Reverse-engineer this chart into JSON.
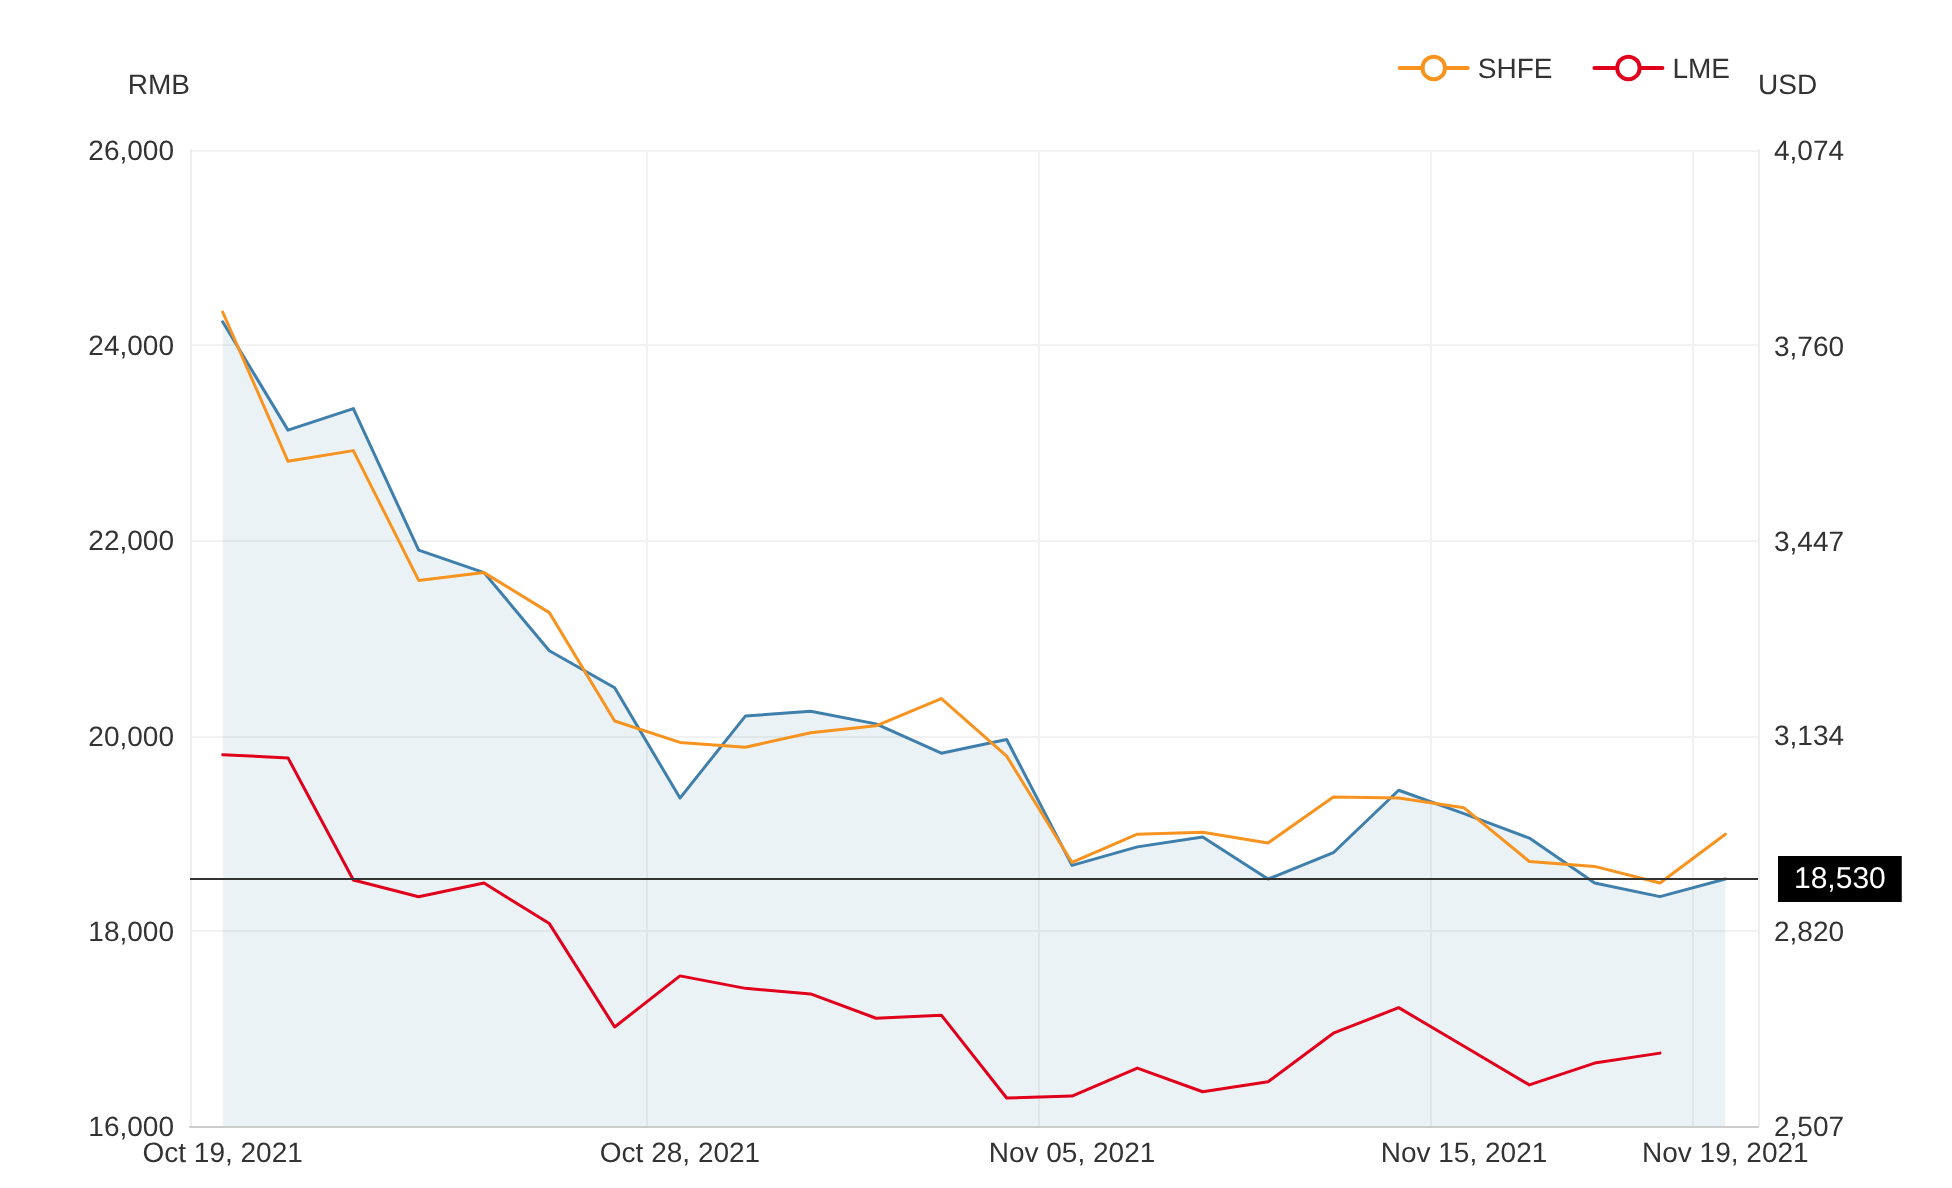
{
  "chart_data": {
    "type": "line",
    "ylabel": "RMB",
    "y2label": "USD",
    "categories": [
      "Oct 19, 2021",
      null,
      null,
      null,
      null,
      null,
      null,
      "Oct 28, 2021",
      null,
      null,
      null,
      null,
      null,
      "Nov 05, 2021",
      null,
      null,
      null,
      null,
      null,
      "Nov 15, 2021",
      null,
      null,
      null,
      "Nov 19, 2021"
    ],
    "series": [
      {
        "type": "area",
        "color": "#3e7fab",
        "values": [
          24240,
          23130,
          23350,
          21900,
          21670,
          20870,
          20490,
          19360,
          20200,
          20250,
          20120,
          19820,
          19960,
          18670,
          18860,
          18960,
          18530,
          18800,
          19440,
          19200,
          18950,
          18490,
          18350,
          18530
        ]
      },
      {
        "name": "SHFE",
        "color": "#f7931e",
        "values": [
          24340,
          22810,
          22920,
          21590,
          21670,
          21260,
          20150,
          19930,
          19880,
          20030,
          20100,
          20380,
          19790,
          18700,
          18990,
          19010,
          18900,
          19370,
          19360,
          19260,
          18710,
          18660,
          18490,
          18990
        ]
      },
      {
        "name": "LME",
        "color": "#e0001b",
        "axis": "y2",
        "values": [
          3103,
          3098,
          2902,
          2875,
          2897,
          2832,
          2666,
          2748,
          2728,
          2719,
          2680,
          2685,
          2552,
          2555,
          2600,
          2562,
          2578,
          2656,
          2697,
          2635,
          2573,
          2608,
          2624,
          null
        ]
      }
    ],
    "ylim": [
      16000,
      26000
    ],
    "yticks": [
      {
        "value": 16000,
        "label": "16,000"
      },
      {
        "value": 18000,
        "label": "18,000"
      },
      {
        "value": 20000,
        "label": "20,000"
      },
      {
        "value": 22000,
        "label": "22,000"
      },
      {
        "value": 24000,
        "label": "24,000"
      },
      {
        "value": 26000,
        "label": "26,000"
      }
    ],
    "y2lim": [
      2507,
      4074
    ],
    "y2ticks": [
      {
        "value": 2507,
        "label": "2,507"
      },
      {
        "value": 2820,
        "label": "2,820"
      },
      {
        "value": 3134,
        "label": "3,134"
      },
      {
        "value": 3447,
        "label": "3,447"
      },
      {
        "value": 3760,
        "label": "3,760"
      },
      {
        "value": 4074,
        "label": "4,074"
      }
    ],
    "ref_lines": [
      {
        "axis": "y",
        "value": 18530,
        "label": "18,530",
        "color": "#333333"
      }
    ],
    "grid": true,
    "legend": "top right",
    "marker": "none",
    "line_style": "solid"
  }
}
